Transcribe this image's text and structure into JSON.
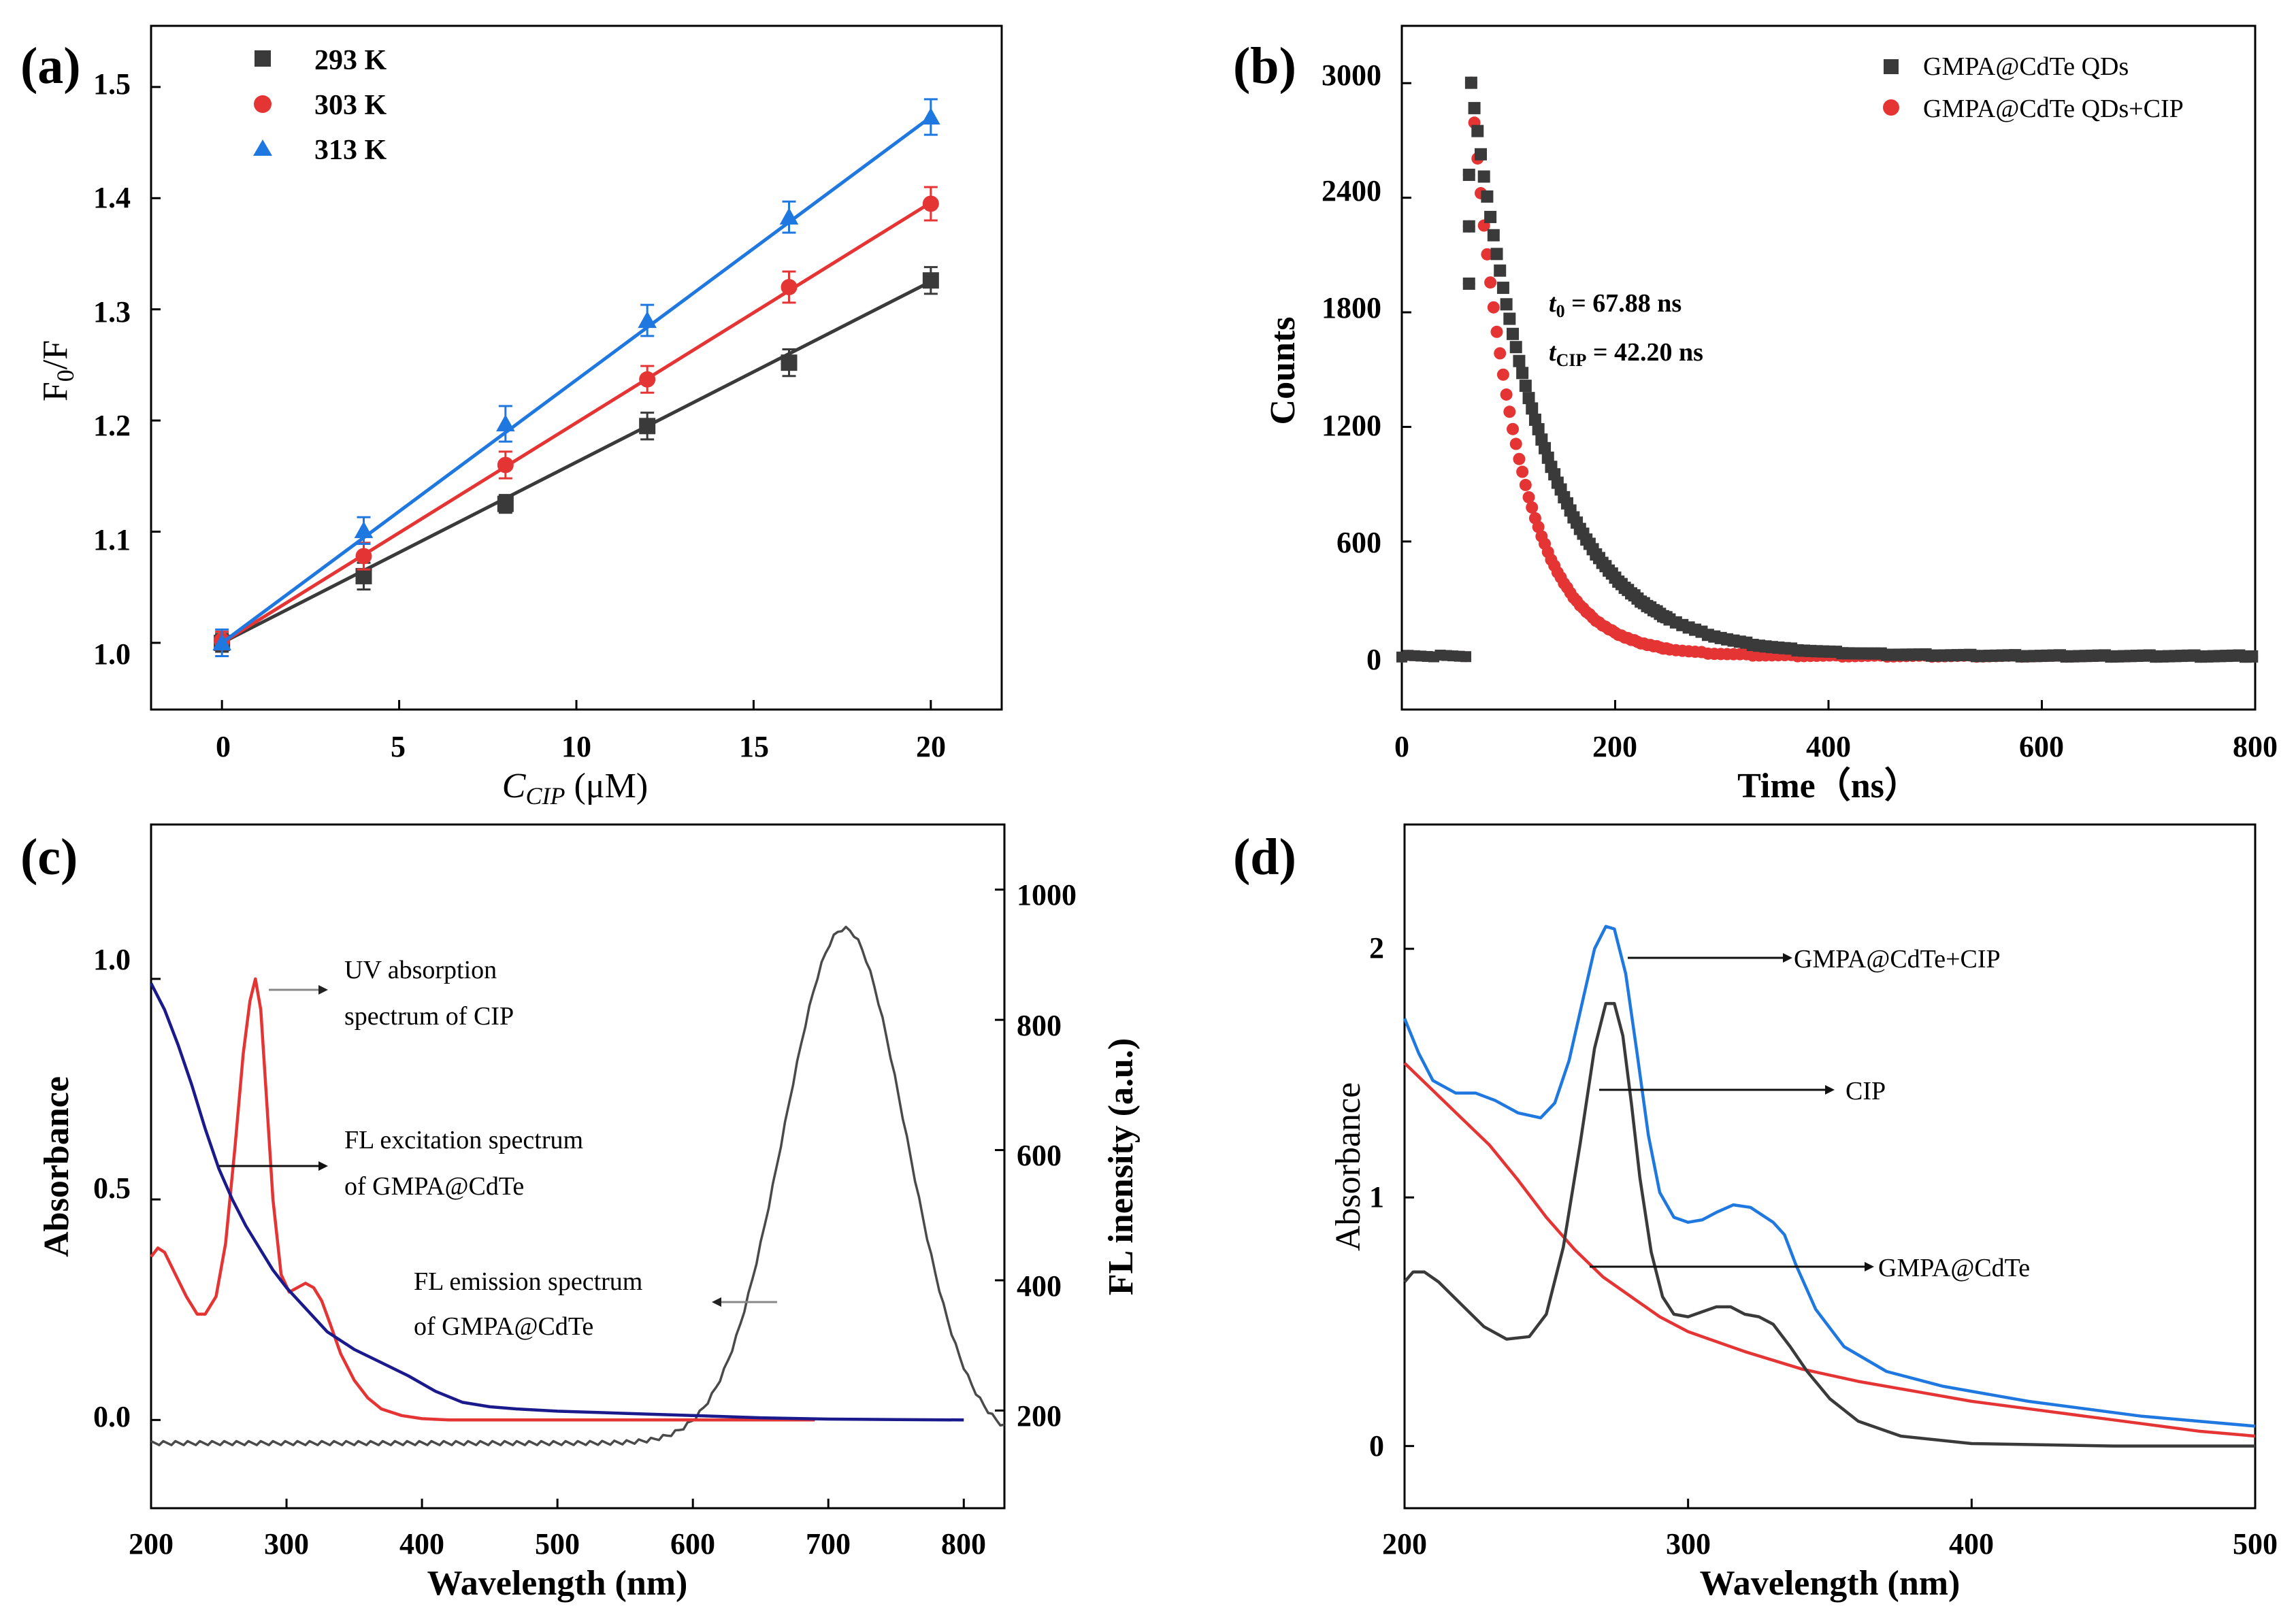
{
  "colors": {
    "black": "#3a3a3a",
    "red": "#e53434",
    "blue": "#1f78e0",
    "navy": "#1a1a8c",
    "grey": "#4a4a4a"
  },
  "chart_data": [
    {
      "id": "a",
      "type": "scatter",
      "panel_label": "(a)",
      "xlabel": "C",
      "xlabel_sub": "CIP",
      "xlabel_unit": " (μM)",
      "ylabel": "F",
      "ylabel_sub": "0",
      "ylabel_tail": "/F",
      "xlim": [
        -2,
        22
      ],
      "ylim": [
        0.94,
        1.555
      ],
      "xticks": [
        0,
        5,
        10,
        15,
        20
      ],
      "xticklabels": [
        "0",
        "5",
        "10",
        "15",
        "20"
      ],
      "yticks": [
        1.0,
        1.1,
        1.2,
        1.3,
        1.4,
        1.5
      ],
      "yticklabels": [
        "1.0",
        "1.1",
        "1.2",
        "1.3",
        "1.4",
        "1.5"
      ],
      "series": [
        {
          "name": "293 K",
          "marker": "square",
          "color": "#3a3a3a",
          "x": [
            0,
            4,
            8,
            12,
            16,
            20
          ],
          "y": [
            1.0,
            1.06,
            1.125,
            1.195,
            1.252,
            1.326
          ],
          "err": [
            0.008,
            0.012,
            0.008,
            0.012,
            0.012,
            0.012
          ],
          "fit": [
            [
              0,
              1.0
            ],
            [
              20,
              1.325
            ]
          ]
        },
        {
          "name": "303 K",
          "marker": "circle",
          "color": "#e53434",
          "x": [
            0,
            4,
            8,
            12,
            16,
            20
          ],
          "y": [
            1.002,
            1.078,
            1.16,
            1.237,
            1.32,
            1.395
          ],
          "err": [
            0.008,
            0.012,
            0.012,
            0.012,
            0.014,
            0.015
          ],
          "fit": [
            [
              0,
              1.0
            ],
            [
              20,
              1.396
            ]
          ]
        },
        {
          "name": "313 K",
          "marker": "triangle",
          "color": "#1f78e0",
          "x": [
            0,
            4,
            8,
            12,
            16,
            20
          ],
          "y": [
            1.0,
            1.101,
            1.197,
            1.29,
            1.383,
            1.473
          ],
          "err": [
            0.012,
            0.012,
            0.016,
            0.014,
            0.014,
            0.016
          ],
          "fit": [
            [
              0,
              1.0
            ],
            [
              20,
              1.473
            ]
          ]
        }
      ]
    },
    {
      "id": "b",
      "type": "scatter",
      "panel_label": "(b)",
      "xlabel": "Time（ns）",
      "ylabel": "Counts",
      "xlim": [
        0,
        800
      ],
      "ylim": [
        -280,
        3300
      ],
      "xticks": [
        0,
        200,
        400,
        600,
        800
      ],
      "xticklabels": [
        "0",
        "200",
        "400",
        "600",
        "800"
      ],
      "yticks": [
        0,
        600,
        1200,
        1800,
        2400,
        3000
      ],
      "yticklabels": [
        "0",
        "600",
        "1200",
        "1800",
        "2400",
        "3000"
      ],
      "annotation": {
        "t0_symbol": "t",
        "t0_sub": "0",
        "t0_text": " = 67.88 ns",
        "tcip_symbol": "t",
        "tcip_sub": "CIP",
        "tcip_text": " = 42.20 ns"
      },
      "series": [
        {
          "name": "GMPA@CdTe QDs",
          "marker": "square",
          "color": "#3a3a3a",
          "t0": 65,
          "peak": 3000,
          "tau": 67.88,
          "baseline": 0
        },
        {
          "name": "GMPA@CdTe QDs+CIP",
          "marker": "circle",
          "color": "#e53434",
          "t0": 65,
          "peak": 3000,
          "tau": 42.2,
          "baseline": 0
        }
      ]
    },
    {
      "id": "c",
      "type": "line",
      "panel_label": "(c)",
      "xlabel": "Wavelength (nm)",
      "ylabel": "Absorbance",
      "y2label": "FL inensity (a.u.)",
      "xlim": [
        200,
        830
      ],
      "ylim": [
        -0.2,
        1.35
      ],
      "y2lim": [
        50,
        1100
      ],
      "xticks": [
        200,
        300,
        400,
        500,
        600,
        700,
        800
      ],
      "xticklabels": [
        "200",
        "300",
        "400",
        "500",
        "600",
        "700",
        "800"
      ],
      "yticks": [
        0.0,
        0.5,
        1.0
      ],
      "yticklabels": [
        "0.0",
        "0.5",
        "1.0"
      ],
      "y2ticks": [
        200,
        400,
        600,
        800,
        1000
      ],
      "y2ticklabels": [
        "200",
        "400",
        "600",
        "800",
        "1000"
      ],
      "annotations": [
        {
          "line1": "UV absorption",
          "line2": "spectrum of CIP"
        },
        {
          "line1": "FL excitation spectrum",
          "line2": "of GMPA@CdTe"
        },
        {
          "line1": "FL emission spectrum",
          "line2": "of GMPA@CdTe"
        }
      ],
      "series": [
        {
          "name": "UV absorption spectrum of CIP",
          "color": "#e53434",
          "axis": "left",
          "x": [
            200,
            205,
            210,
            218,
            226,
            234,
            240,
            248,
            255,
            262,
            268,
            273,
            277,
            281,
            285,
            290,
            296,
            302,
            308,
            314,
            320,
            326,
            332,
            340,
            350,
            360,
            370,
            385,
            400,
            420,
            460,
            500,
            560,
            620,
            690
          ],
          "y": [
            0.37,
            0.39,
            0.38,
            0.33,
            0.28,
            0.24,
            0.24,
            0.28,
            0.4,
            0.62,
            0.83,
            0.95,
            1.0,
            0.93,
            0.74,
            0.5,
            0.33,
            0.29,
            0.3,
            0.31,
            0.3,
            0.27,
            0.22,
            0.15,
            0.09,
            0.05,
            0.025,
            0.01,
            0.003,
            0.0,
            0.0,
            0.0,
            0.0,
            0.0,
            0.0
          ]
        },
        {
          "name": "FL excitation spectrum of GMPA@CdTe",
          "color": "#1a1a8c",
          "axis": "left",
          "x": [
            200,
            210,
            220,
            230,
            240,
            250,
            260,
            270,
            280,
            290,
            300,
            315,
            330,
            350,
            370,
            390,
            410,
            430,
            450,
            470,
            500,
            550,
            600,
            650,
            700,
            750,
            800
          ],
          "y": [
            0.99,
            0.93,
            0.85,
            0.76,
            0.66,
            0.57,
            0.5,
            0.44,
            0.39,
            0.34,
            0.3,
            0.25,
            0.2,
            0.16,
            0.13,
            0.1,
            0.065,
            0.04,
            0.03,
            0.025,
            0.02,
            0.015,
            0.01,
            0.005,
            0.002,
            0.001,
            0.0
          ]
        },
        {
          "name": "FL emission spectrum of GMPA@CdTe",
          "color": "#4a4a4a",
          "axis": "right",
          "baseline": 150,
          "peak_x": 712,
          "peak_y": 940,
          "sigma": 45
        }
      ]
    },
    {
      "id": "d",
      "type": "line",
      "panel_label": "(d)",
      "xlabel": "Wavelength (nm)",
      "ylabel": "Absorbance",
      "xlim": [
        200,
        500
      ],
      "ylim": [
        -0.25,
        2.5
      ],
      "xticks": [
        200,
        300,
        400,
        500
      ],
      "xticklabels": [
        "200",
        "300",
        "400",
        "500"
      ],
      "yticks": [
        0,
        1,
        2
      ],
      "yticklabels": [
        "0",
        "1",
        "2"
      ],
      "annotations": [
        "GMPA@CdTe+CIP",
        "CIP",
        "GMPA@CdTe"
      ],
      "series": [
        {
          "name": "GMPA@CdTe+CIP",
          "color": "#1f78e0",
          "x": [
            200,
            205,
            210,
            218,
            225,
            232,
            240,
            248,
            253,
            258,
            263,
            267,
            271,
            274,
            278,
            282,
            286,
            290,
            295,
            300,
            305,
            310,
            316,
            322,
            326,
            330,
            334,
            338,
            345,
            355,
            370,
            390,
            420,
            460,
            500
          ],
          "y": [
            1.72,
            1.58,
            1.47,
            1.42,
            1.42,
            1.39,
            1.34,
            1.32,
            1.38,
            1.55,
            1.8,
            2.0,
            2.09,
            2.08,
            1.9,
            1.58,
            1.25,
            1.02,
            0.92,
            0.9,
            0.91,
            0.94,
            0.97,
            0.96,
            0.93,
            0.9,
            0.85,
            0.73,
            0.55,
            0.4,
            0.3,
            0.24,
            0.18,
            0.12,
            0.08
          ]
        },
        {
          "name": "CIP",
          "color": "#3a3a3a",
          "x": [
            200,
            203,
            207,
            212,
            220,
            228,
            236,
            244,
            250,
            256,
            262,
            267,
            271,
            274,
            277,
            280,
            283,
            287,
            291,
            295,
            300,
            305,
            310,
            315,
            320,
            325,
            330,
            336,
            342,
            350,
            360,
            375,
            400,
            450,
            500
          ],
          "y": [
            0.66,
            0.7,
            0.7,
            0.66,
            0.57,
            0.48,
            0.43,
            0.44,
            0.53,
            0.8,
            1.22,
            1.6,
            1.78,
            1.78,
            1.65,
            1.38,
            1.08,
            0.78,
            0.6,
            0.53,
            0.52,
            0.54,
            0.56,
            0.56,
            0.53,
            0.52,
            0.49,
            0.4,
            0.3,
            0.19,
            0.1,
            0.04,
            0.01,
            0.0,
            0.0
          ]
        },
        {
          "name": "GMPA@CdTe",
          "color": "#e53434",
          "x": [
            200,
            210,
            220,
            230,
            240,
            250,
            260,
            270,
            280,
            290,
            300,
            320,
            340,
            360,
            380,
            400,
            420,
            440,
            460,
            480,
            500
          ],
          "y": [
            1.54,
            1.43,
            1.32,
            1.21,
            1.07,
            0.92,
            0.79,
            0.68,
            0.6,
            0.52,
            0.46,
            0.38,
            0.31,
            0.26,
            0.22,
            0.18,
            0.15,
            0.12,
            0.09,
            0.06,
            0.04
          ]
        }
      ]
    }
  ]
}
